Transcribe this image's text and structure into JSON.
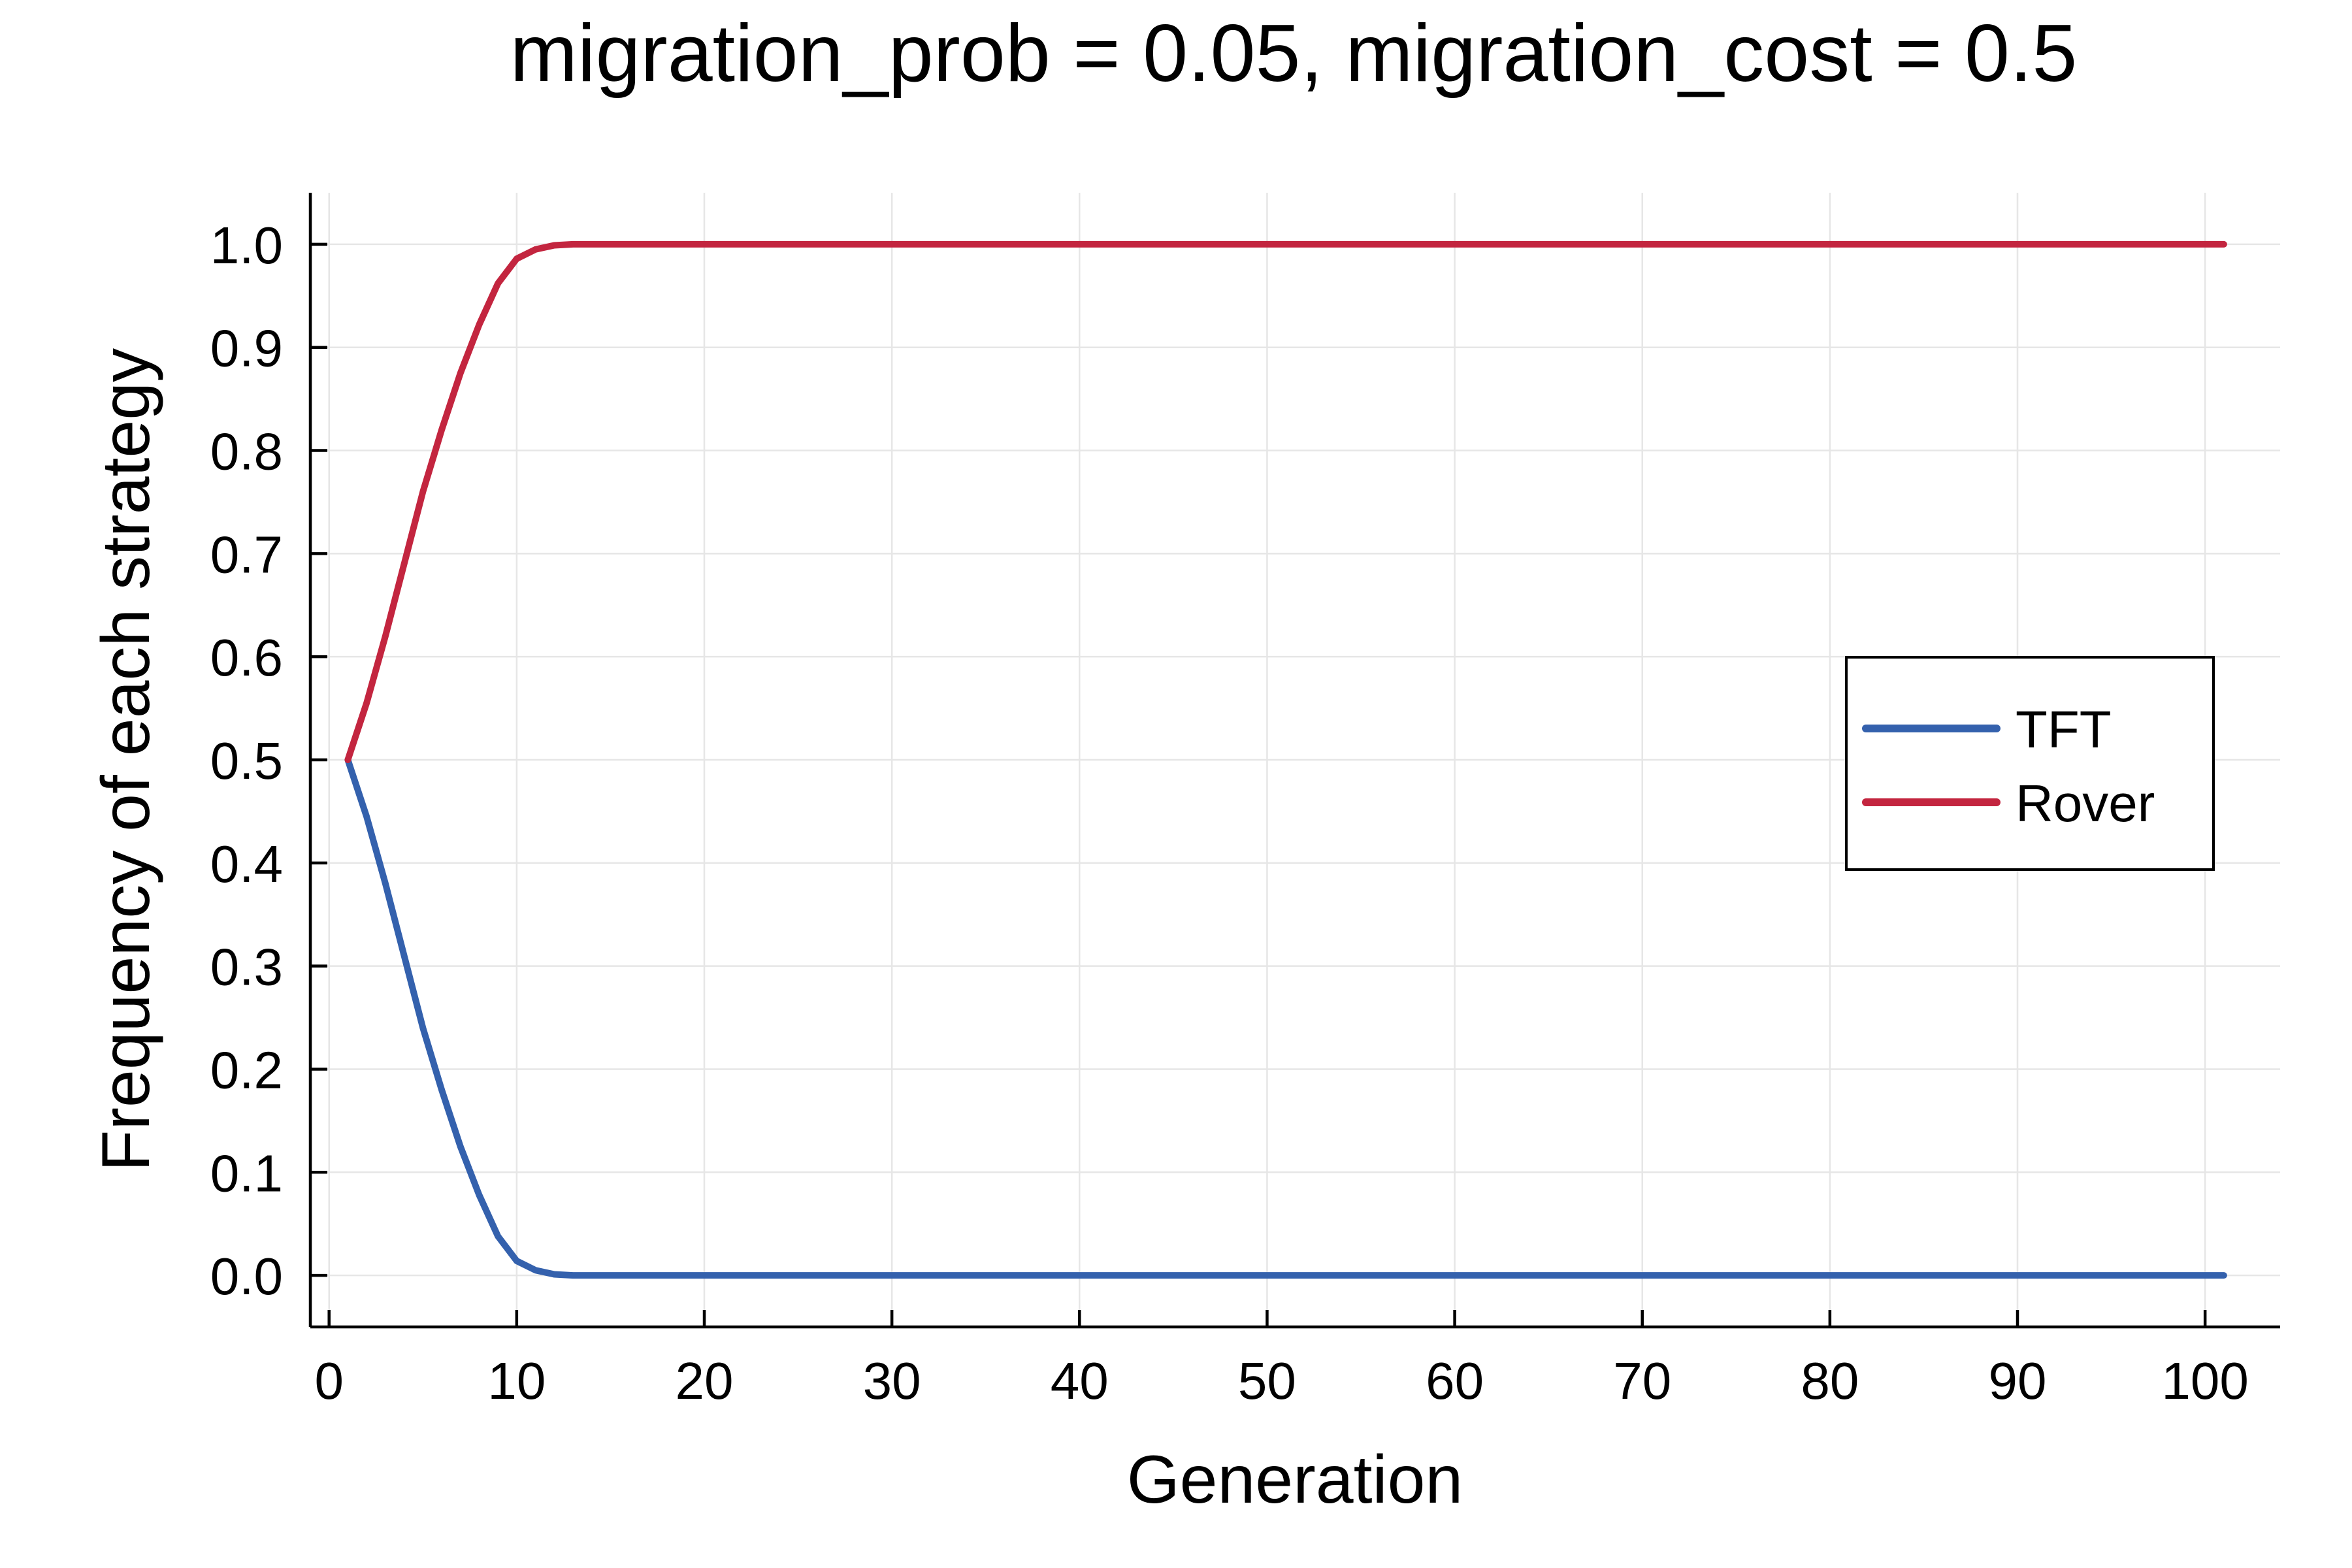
{
  "chart_data": {
    "type": "line",
    "title": "migration_prob = 0.05, migration_cost = 0.5",
    "xlabel": "Generation",
    "ylabel": "Frequency of each strategy",
    "xlim": [
      -1,
      104
    ],
    "ylim": [
      -0.05,
      1.05
    ],
    "x_ticks": [
      0,
      10,
      20,
      30,
      40,
      50,
      60,
      70,
      80,
      90,
      100
    ],
    "x_tick_labels": [
      "0",
      "10",
      "20",
      "30",
      "40",
      "50",
      "60",
      "70",
      "80",
      "90",
      "100"
    ],
    "y_ticks": [
      0.0,
      0.1,
      0.2,
      0.3,
      0.4,
      0.5,
      0.6,
      0.7,
      0.8,
      0.9,
      1.0
    ],
    "y_tick_labels": [
      "0.0",
      "0.1",
      "0.2",
      "0.3",
      "0.4",
      "0.5",
      "0.6",
      "0.7",
      "0.8",
      "0.9",
      "1.0"
    ],
    "grid": true,
    "legend_position": "right",
    "series": [
      {
        "name": "TFT",
        "color": "#3461ad",
        "x": [
          1,
          2,
          3,
          4,
          5,
          6,
          7,
          8,
          9,
          10,
          11,
          12,
          13,
          20,
          40,
          60,
          80,
          101
        ],
        "y": [
          0.5,
          0.445,
          0.38,
          0.31,
          0.24,
          0.18,
          0.125,
          0.078,
          0.038,
          0.014,
          0.005,
          0.001,
          0.0,
          0.0,
          0.0,
          0.0,
          0.0,
          0.0
        ]
      },
      {
        "name": "Rover",
        "color": "#c3253f",
        "x": [
          1,
          2,
          3,
          4,
          5,
          6,
          7,
          8,
          9,
          10,
          11,
          12,
          13,
          20,
          40,
          60,
          80,
          101
        ],
        "y": [
          0.5,
          0.555,
          0.62,
          0.69,
          0.76,
          0.82,
          0.875,
          0.922,
          0.962,
          0.986,
          0.995,
          0.999,
          1.0,
          1.0,
          1.0,
          1.0,
          1.0,
          1.0
        ]
      }
    ]
  }
}
